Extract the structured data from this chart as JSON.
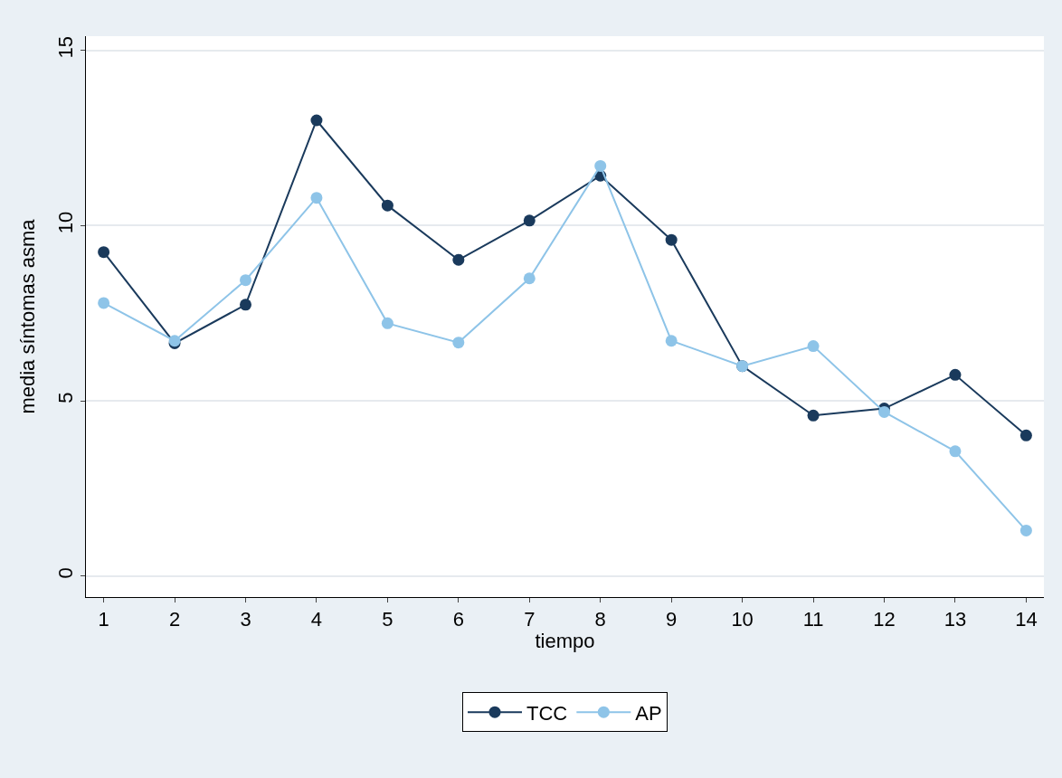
{
  "chart_data": {
    "type": "line",
    "xlabel": "tiempo",
    "ylabel": "media síntomas asma",
    "x": [
      1,
      2,
      3,
      4,
      5,
      6,
      7,
      8,
      9,
      10,
      11,
      12,
      13,
      14
    ],
    "xlim": [
      0.75,
      14.25
    ],
    "xticks": [
      1,
      2,
      3,
      4,
      5,
      6,
      7,
      8,
      9,
      10,
      11,
      12,
      13,
      14
    ],
    "ylim": [
      -0.6,
      15.4
    ],
    "yticks": [
      0,
      5,
      10,
      15
    ],
    "grid": "y",
    "legend": "bottom",
    "marker": "circle",
    "line_style": "solid",
    "series": [
      {
        "name": "TCC",
        "color": "#1a3a5c",
        "values": [
          9.24,
          6.64,
          7.74,
          13.0,
          10.57,
          9.02,
          10.14,
          11.42,
          9.59,
          5.99,
          4.58,
          4.78,
          5.74,
          4.01
        ]
      },
      {
        "name": "AP",
        "color": "#8ec4e8",
        "values": [
          7.79,
          6.71,
          8.44,
          10.79,
          7.21,
          6.66,
          8.49,
          11.7,
          6.71,
          5.99,
          6.56,
          4.68,
          3.56,
          1.3
        ]
      }
    ]
  }
}
